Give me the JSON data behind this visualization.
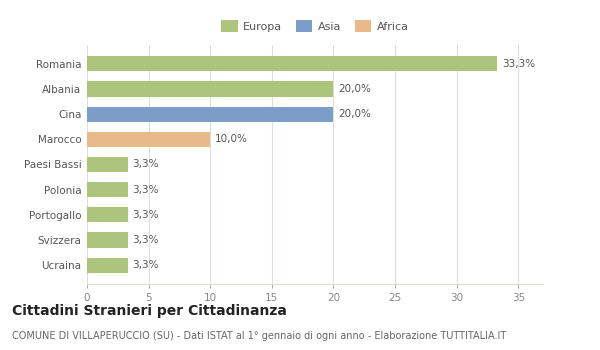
{
  "countries": [
    "Romania",
    "Albania",
    "Cina",
    "Marocco",
    "Paesi Bassi",
    "Polonia",
    "Portogallo",
    "Svizzera",
    "Ucraina"
  ],
  "values": [
    33.3,
    20.0,
    20.0,
    10.0,
    3.3,
    3.3,
    3.3,
    3.3,
    3.3
  ],
  "labels": [
    "33,3%",
    "20,0%",
    "20,0%",
    "10,0%",
    "3,3%",
    "3,3%",
    "3,3%",
    "3,3%",
    "3,3%"
  ],
  "colors": [
    "#adc47d",
    "#adc47d",
    "#7b9dc7",
    "#e8b989",
    "#adc47d",
    "#adc47d",
    "#adc47d",
    "#adc47d",
    "#adc47d"
  ],
  "legend": [
    {
      "label": "Europa",
      "color": "#adc47d"
    },
    {
      "label": "Asia",
      "color": "#7b9dc7"
    },
    {
      "label": "Africa",
      "color": "#e8b989"
    }
  ],
  "xlim": [
    0,
    37
  ],
  "xticks": [
    0,
    5,
    10,
    15,
    20,
    25,
    30,
    35
  ],
  "title": "Cittadini Stranieri per Cittadinanza",
  "subtitle": "COMUNE DI VILLAPERUCCIO (SU) - Dati ISTAT al 1° gennaio di ogni anno - Elaborazione TUTTITALIA.IT",
  "background_color": "#ffffff",
  "grid_color": "#d8e4d0",
  "bar_height": 0.6,
  "label_fontsize": 7.5,
  "ytick_fontsize": 7.5,
  "xtick_fontsize": 7.5,
  "title_fontsize": 10,
  "subtitle_fontsize": 7,
  "legend_fontsize": 8
}
